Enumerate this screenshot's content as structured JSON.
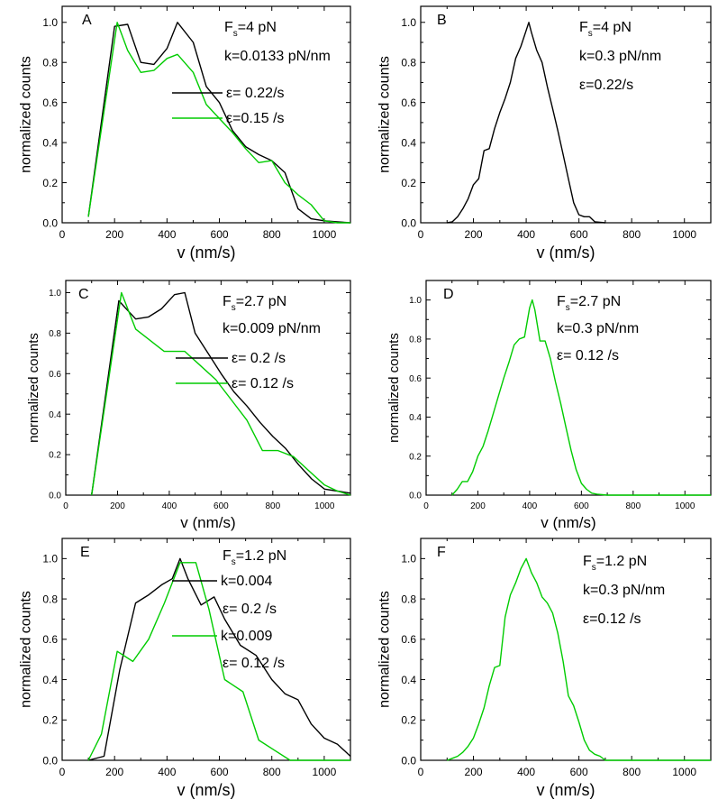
{
  "chart_data": [
    {
      "type": "line",
      "panel_label": "A",
      "xlabel": "v (nm/s)",
      "ylabel": "normalized counts",
      "xlim": [
        0,
        1100
      ],
      "ylim": [
        0,
        1.08
      ],
      "xticks": [
        0,
        200,
        400,
        600,
        800,
        1000
      ],
      "yticks": [
        0.0,
        0.2,
        0.4,
        0.6,
        0.8,
        1.0
      ],
      "annotations": [
        "F_s=4 pN",
        "k=0.0133 pN/nm"
      ],
      "legend_placement": "right",
      "series": [
        {
          "name": "ε= 0.22/s",
          "color": "#000000",
          "x": [
            100,
            200,
            250,
            300,
            350,
            400,
            440,
            500,
            550,
            600,
            650,
            700,
            750,
            800,
            850,
            900,
            950,
            1000,
            1050,
            1100
          ],
          "y": [
            0.03,
            0.98,
            0.99,
            0.8,
            0.79,
            0.87,
            1.0,
            0.9,
            0.68,
            0.6,
            0.46,
            0.38,
            0.34,
            0.31,
            0.25,
            0.07,
            0.02,
            0.01,
            0.005,
            0.0
          ]
        },
        {
          "name": "ε=0.15 /s",
          "color": "#00cc00",
          "x": [
            100,
            210,
            250,
            300,
            350,
            400,
            440,
            500,
            550,
            600,
            650,
            700,
            750,
            800,
            850,
            900,
            950,
            1000,
            1050,
            1100
          ],
          "y": [
            0.03,
            1.0,
            0.86,
            0.75,
            0.76,
            0.82,
            0.84,
            0.75,
            0.59,
            0.52,
            0.45,
            0.37,
            0.3,
            0.31,
            0.2,
            0.14,
            0.09,
            0.01,
            0.0,
            0.0
          ]
        }
      ]
    },
    {
      "type": "line",
      "panel_label": "B",
      "xlabel": "v (nm/s)",
      "ylabel": "normalized counts",
      "xlim": [
        0,
        1100
      ],
      "ylim": [
        0,
        1.08
      ],
      "xticks": [
        0,
        200,
        400,
        600,
        800,
        1000
      ],
      "yticks": [
        0.0,
        0.2,
        0.4,
        0.6,
        0.8,
        1.0
      ],
      "annotations": [
        "F_s=4 pN",
        "k=0.3 pN/nm",
        "ε=0.22/s"
      ],
      "series": [
        {
          "name": "",
          "color": "#000000",
          "x": [
            100,
            120,
            140,
            160,
            180,
            200,
            220,
            240,
            260,
            280,
            300,
            320,
            340,
            360,
            380,
            400,
            410,
            420,
            440,
            460,
            480,
            500,
            520,
            540,
            560,
            580,
            600,
            620,
            640,
            660,
            700
          ],
          "y": [
            0.0,
            0.005,
            0.03,
            0.07,
            0.12,
            0.19,
            0.22,
            0.36,
            0.37,
            0.47,
            0.55,
            0.62,
            0.7,
            0.82,
            0.88,
            0.96,
            1.0,
            0.95,
            0.86,
            0.8,
            0.68,
            0.57,
            0.46,
            0.34,
            0.22,
            0.1,
            0.04,
            0.03,
            0.03,
            0.005,
            0.0
          ]
        }
      ]
    },
    {
      "type": "line",
      "panel_label": "C",
      "xlabel": "v (nm/s)",
      "ylabel": "normalized counts",
      "xlim": [
        0,
        1100
      ],
      "ylim": [
        0,
        1.06
      ],
      "xticks": [
        0,
        200,
        400,
        600,
        800,
        1000
      ],
      "yticks": [
        0.0,
        0.2,
        0.4,
        0.6,
        0.8,
        1.0
      ],
      "annotations": [
        "F_s=2.7 pN",
        "k=0.009 pN/nm"
      ],
      "legend_placement": "right",
      "series": [
        {
          "name": "ε= 0.2 /s",
          "color": "#000000",
          "x": [
            100,
            205,
            270,
            320,
            370,
            420,
            460,
            500,
            550,
            600,
            650,
            700,
            750,
            800,
            850,
            900,
            950,
            1000,
            1050,
            1100
          ],
          "y": [
            0.0,
            0.96,
            0.87,
            0.88,
            0.92,
            0.99,
            1.0,
            0.8,
            0.7,
            0.6,
            0.51,
            0.44,
            0.36,
            0.29,
            0.23,
            0.15,
            0.08,
            0.03,
            0.02,
            0.01
          ]
        },
        {
          "name": "ε= 0.12 /s",
          "color": "#00cc00",
          "x": [
            100,
            215,
            270,
            320,
            380,
            460,
            520,
            580,
            640,
            700,
            760,
            820,
            880,
            940,
            1000,
            1050,
            1100
          ],
          "y": [
            0.0,
            1.0,
            0.82,
            0.77,
            0.71,
            0.71,
            0.64,
            0.57,
            0.47,
            0.37,
            0.22,
            0.22,
            0.19,
            0.12,
            0.05,
            0.02,
            0.0
          ]
        }
      ]
    },
    {
      "type": "line",
      "panel_label": "D",
      "xlabel": "v (nm/s)",
      "ylabel": "normalized counts",
      "xlim": [
        0,
        1100
      ],
      "ylim": [
        0,
        1.1
      ],
      "xticks": [
        0,
        200,
        400,
        600,
        800,
        1000
      ],
      "yticks": [
        0.0,
        0.2,
        0.4,
        0.6,
        0.8,
        1.0
      ],
      "annotations": [
        "F_s=2.7 pN",
        "k=0.3 pN/nm",
        "ε= 0.12 /s"
      ],
      "series": [
        {
          "name": "",
          "color": "#00cc00",
          "x": [
            100,
            120,
            140,
            160,
            180,
            200,
            220,
            240,
            260,
            280,
            300,
            320,
            340,
            360,
            380,
            400,
            410,
            420,
            440,
            460,
            480,
            500,
            520,
            540,
            560,
            580,
            600,
            620,
            640,
            660,
            700,
            1100
          ],
          "y": [
            0.0,
            0.03,
            0.07,
            0.07,
            0.12,
            0.2,
            0.25,
            0.33,
            0.42,
            0.51,
            0.6,
            0.68,
            0.77,
            0.8,
            0.81,
            0.96,
            1.0,
            0.95,
            0.79,
            0.79,
            0.7,
            0.58,
            0.47,
            0.35,
            0.23,
            0.13,
            0.06,
            0.03,
            0.01,
            0.005,
            0.0,
            0.0
          ]
        }
      ]
    },
    {
      "type": "line",
      "panel_label": "E",
      "xlabel": "v (nm/s)",
      "ylabel": "normalized counts",
      "xlim": [
        0,
        1100
      ],
      "ylim": [
        0,
        1.1
      ],
      "xticks": [
        0,
        200,
        400,
        600,
        800,
        1000
      ],
      "yticks": [
        0.0,
        0.2,
        0.4,
        0.6,
        0.8,
        1.0
      ],
      "annotations": [
        "F_s=1.2 pN"
      ],
      "legend_placement": "top-right",
      "series": [
        {
          "name": "k=0.004",
          "sublabel": "ε= 0.2 /s",
          "color": "#000000",
          "x": [
            100,
            160,
            220,
            280,
            330,
            380,
            420,
            450,
            480,
            530,
            580,
            620,
            680,
            740,
            800,
            850,
            900,
            950,
            1000,
            1050,
            1100
          ],
          "y": [
            0.0,
            0.02,
            0.45,
            0.78,
            0.82,
            0.87,
            0.9,
            1.0,
            0.9,
            0.77,
            0.81,
            0.7,
            0.57,
            0.52,
            0.4,
            0.33,
            0.3,
            0.18,
            0.11,
            0.08,
            0.02
          ]
        },
        {
          "name": "k=0.009",
          "sublabel": "ε= 0.12 /s",
          "color": "#00cc00",
          "x": [
            100,
            150,
            210,
            270,
            330,
            390,
            450,
            510,
            560,
            620,
            690,
            750,
            810,
            870,
            1100
          ],
          "y": [
            0.0,
            0.13,
            0.54,
            0.49,
            0.6,
            0.78,
            0.98,
            0.98,
            0.75,
            0.4,
            0.34,
            0.1,
            0.05,
            0.0,
            0.0
          ]
        }
      ]
    },
    {
      "type": "line",
      "panel_label": "F",
      "xlabel": "v (nm/s)",
      "ylabel": "normalized counts",
      "xlim": [
        0,
        1100
      ],
      "ylim": [
        0,
        1.1
      ],
      "xticks": [
        0,
        200,
        400,
        600,
        800,
        1000
      ],
      "yticks": [
        0.0,
        0.2,
        0.4,
        0.6,
        0.8,
        1.0
      ],
      "annotations": [
        "F_s=1.2 pN",
        "k=0.3 pN/nm",
        "ε=0.12 /s"
      ],
      "series": [
        {
          "name": "",
          "color": "#00cc00",
          "x": [
            100,
            120,
            140,
            160,
            180,
            200,
            220,
            240,
            260,
            280,
            300,
            320,
            340,
            360,
            380,
            400,
            420,
            440,
            460,
            480,
            500,
            520,
            540,
            560,
            580,
            600,
            620,
            640,
            660,
            680,
            700,
            1100
          ],
          "y": [
            0.0,
            0.01,
            0.02,
            0.04,
            0.07,
            0.11,
            0.18,
            0.26,
            0.37,
            0.46,
            0.47,
            0.71,
            0.82,
            0.88,
            0.95,
            1.0,
            0.93,
            0.88,
            0.81,
            0.78,
            0.73,
            0.63,
            0.49,
            0.32,
            0.27,
            0.19,
            0.1,
            0.05,
            0.03,
            0.02,
            0.0,
            0.0
          ]
        }
      ]
    }
  ]
}
